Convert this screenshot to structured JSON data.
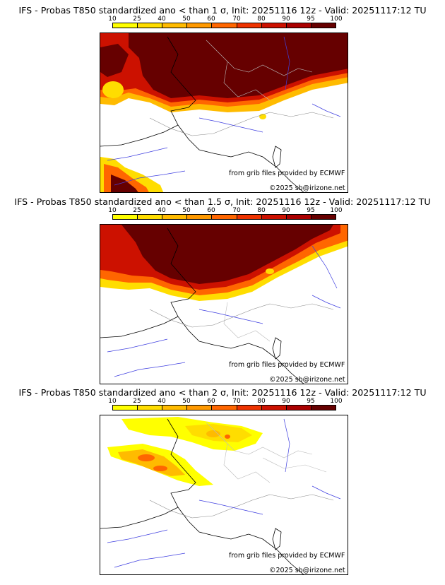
{
  "scale": {
    "ticks": [
      "10",
      "25",
      "40",
      "50",
      "60",
      "70",
      "80",
      "90",
      "95",
      "100"
    ],
    "colors": [
      "#ffff00",
      "#ffdd00",
      "#ffbb00",
      "#ff9900",
      "#ff6600",
      "#ee3300",
      "#cc1100",
      "#aa0000",
      "#660000"
    ]
  },
  "panels": [
    {
      "title": "IFS - Probas T850  standardized ano < than 1 σ, Init: 20251116 12z - Valid: 20251117:12 TU",
      "credit_source": "from grib files provided by ECMWF",
      "credit_copyright": "©2025 sb@irizone.net"
    },
    {
      "title": "IFS - Probas T850  standardized ano < than 1.5 σ, Init: 20251116 12z - Valid: 20251117:12 TU",
      "credit_source": "from grib files provided by ECMWF",
      "credit_copyright": "©2025 sb@irizone.net"
    },
    {
      "title": "IFS - Probas T850  standardized ano < than 2 σ, Init: 20251116 12z - Valid: 20251117:12 TU",
      "credit_source": "from grib files provided by ECMWF",
      "credit_copyright": "©2025 sb@irizone.net"
    }
  ]
}
